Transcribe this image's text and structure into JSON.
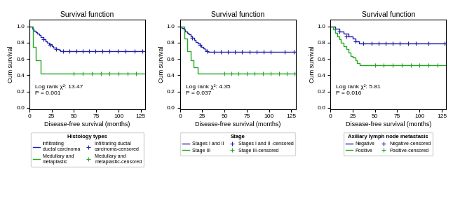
{
  "chart_data": [
    {
      "type": "step",
      "title": "Survival function",
      "x_label": "Disease-free survival (months)",
      "y_label": "Cum survival",
      "xlim": [
        0,
        130
      ],
      "ylim": [
        -0.02,
        1.08
      ],
      "xticks": [
        0,
        25,
        50,
        75,
        100,
        125
      ],
      "yticks": [
        {
          "value": 0.0,
          "label": "0.0"
        },
        {
          "value": 0.2,
          "label": "0.2"
        },
        {
          "value": 0.4,
          "label": "0.4"
        },
        {
          "value": 0.6,
          "label": "0.6"
        },
        {
          "value": 0.8,
          "label": "0.8"
        },
        {
          "value": 1.0,
          "label": "1.0"
        }
      ],
      "annotations": [
        "Log rank χ²: 13.47",
        "P = 0.001"
      ],
      "legend": "below",
      "legend_title": "Histology types",
      "series": [
        {
          "name": "Infiltrating\nductal carcinoma",
          "type": "step",
          "color": "#2222aa",
          "x": [
            0,
            3,
            5,
            7,
            9,
            11,
            13,
            16,
            18,
            20,
            22,
            25,
            27,
            30,
            33,
            35,
            38,
            40,
            42,
            45,
            48,
            50,
            130
          ],
          "values": [
            1.0,
            0.97,
            0.95,
            0.93,
            0.91,
            0.89,
            0.87,
            0.84,
            0.82,
            0.8,
            0.78,
            0.76,
            0.74,
            0.72,
            0.71,
            0.7,
            0.7,
            0.7,
            0.7,
            0.7,
            0.7,
            0.7,
            0.7
          ]
        },
        {
          "name": "Medullary and\nmetaplastic",
          "type": "step",
          "color": "#22aa22",
          "x": [
            0,
            4,
            7,
            10,
            13,
            16,
            20,
            22,
            50,
            130
          ],
          "values": [
            1.0,
            0.75,
            0.58,
            0.58,
            0.42,
            0.42,
            0.42,
            0.42,
            0.42,
            0.42
          ]
        },
        {
          "name": "Infiltrating ductal\ncarcinoma-censored",
          "type": "scatter",
          "marker": "plus",
          "color": "#2222aa",
          "x": [
            16,
            23,
            30,
            38,
            45,
            53,
            60,
            67,
            74,
            82,
            90,
            99,
            108,
            118,
            127
          ],
          "values": [
            0.84,
            0.77,
            0.72,
            0.7,
            0.7,
            0.7,
            0.7,
            0.7,
            0.7,
            0.7,
            0.7,
            0.7,
            0.7,
            0.7,
            0.7
          ]
        },
        {
          "name": "Medullary and\nmetaplastic-censored",
          "type": "scatter",
          "marker": "plus",
          "color": "#22aa22",
          "x": [
            50,
            60,
            70,
            80,
            90,
            100,
            110,
            120
          ],
          "values": [
            0.42,
            0.42,
            0.42,
            0.42,
            0.42,
            0.42,
            0.42,
            0.42
          ]
        }
      ]
    },
    {
      "type": "step",
      "title": "Survival function",
      "x_label": "Disease-free survival (months)",
      "y_label": "Cum survival",
      "xlim": [
        0,
        130
      ],
      "ylim": [
        -0.02,
        1.08
      ],
      "xticks": [
        0,
        25,
        50,
        75,
        100,
        125
      ],
      "yticks": [
        {
          "value": 0.0,
          "label": "0.0"
        },
        {
          "value": 0.2,
          "label": "0.2"
        },
        {
          "value": 0.4,
          "label": "0.4"
        },
        {
          "value": 0.6,
          "label": "0.6"
        },
        {
          "value": 0.8,
          "label": "0.8"
        },
        {
          "value": 1.0,
          "label": "1.0"
        }
      ],
      "annotations": [
        "Log rank χ²: 4.35",
        "P = 0.037"
      ],
      "legend": "below",
      "legend_title": "Stage",
      "series": [
        {
          "name": "Stages I and II",
          "type": "step",
          "color": "#2222aa",
          "x": [
            0,
            2,
            4,
            6,
            8,
            10,
            12,
            14,
            16,
            18,
            20,
            22,
            24,
            26,
            28,
            30,
            32,
            35,
            38,
            40,
            42,
            45,
            48,
            50,
            130
          ],
          "values": [
            1.0,
            0.98,
            0.96,
            0.94,
            0.92,
            0.9,
            0.88,
            0.86,
            0.83,
            0.81,
            0.79,
            0.77,
            0.75,
            0.73,
            0.71,
            0.7,
            0.69,
            0.69,
            0.69,
            0.69,
            0.69,
            0.69,
            0.69,
            0.69,
            0.69
          ]
        },
        {
          "name": "Stage III",
          "type": "step",
          "color": "#22aa22",
          "x": [
            0,
            5,
            8,
            12,
            15,
            20,
            30,
            50,
            130
          ],
          "values": [
            1.0,
            0.85,
            0.7,
            0.58,
            0.5,
            0.42,
            0.42,
            0.42,
            0.42
          ]
        },
        {
          "name": "Stages I and II -censored",
          "type": "scatter",
          "marker": "plus",
          "color": "#2222aa",
          "x": [
            14,
            22,
            30,
            38,
            46,
            54,
            62,
            70,
            78,
            86,
            94,
            102,
            118,
            128
          ],
          "values": [
            0.86,
            0.77,
            0.7,
            0.69,
            0.69,
            0.69,
            0.69,
            0.69,
            0.69,
            0.69,
            0.69,
            0.69,
            0.69,
            0.69
          ]
        },
        {
          "name": "Stage III-censored",
          "type": "scatter",
          "marker": "plus",
          "color": "#22aa22",
          "x": [
            50,
            58,
            66,
            75,
            84,
            93,
            102,
            111,
            120,
            129
          ],
          "values": [
            0.42,
            0.42,
            0.42,
            0.42,
            0.42,
            0.42,
            0.42,
            0.42,
            0.42,
            0.42
          ]
        }
      ]
    },
    {
      "type": "step",
      "title": "Survival function",
      "x_label": "Disease-free survival (months)",
      "y_label": "Cum survival",
      "xlim": [
        0,
        130
      ],
      "ylim": [
        -0.02,
        1.08
      ],
      "xticks": [
        0,
        25,
        50,
        75,
        100,
        125
      ],
      "yticks": [
        {
          "value": 0.0,
          "label": "0.0"
        },
        {
          "value": 0.2,
          "label": "0.2"
        },
        {
          "value": 0.4,
          "label": "0.4"
        },
        {
          "value": 0.6,
          "label": "0.6"
        },
        {
          "value": 0.8,
          "label": "0.8"
        },
        {
          "value": 1.0,
          "label": "1.0"
        }
      ],
      "annotations": [
        "Log rank χ²: 5.81",
        "P = 0.016"
      ],
      "legend": "below",
      "legend_title": "Axillary lymph node metastasis",
      "series": [
        {
          "name": "Negative",
          "type": "step",
          "color": "#2222aa",
          "x": [
            0,
            5,
            10,
            15,
            20,
            25,
            28,
            32,
            35,
            40,
            50,
            130
          ],
          "values": [
            1.0,
            0.97,
            0.94,
            0.91,
            0.88,
            0.85,
            0.82,
            0.79,
            0.79,
            0.79,
            0.79,
            0.79
          ]
        },
        {
          "name": "Positive",
          "type": "step",
          "color": "#22aa22",
          "x": [
            0,
            3,
            5,
            8,
            10,
            12,
            15,
            18,
            20,
            23,
            25,
            28,
            30,
            33,
            35,
            38,
            40,
            42,
            45,
            48,
            50,
            130
          ],
          "values": [
            1.0,
            0.96,
            0.92,
            0.88,
            0.84,
            0.8,
            0.76,
            0.72,
            0.68,
            0.64,
            0.62,
            0.58,
            0.55,
            0.52,
            0.52,
            0.52,
            0.52,
            0.52,
            0.52,
            0.52,
            0.52,
            0.52
          ]
        },
        {
          "name": "Negative-censored",
          "type": "scatter",
          "marker": "plus",
          "color": "#2222aa",
          "x": [
            10,
            18,
            28,
            37,
            46,
            54,
            62,
            70,
            78,
            87,
            96,
            110,
            128
          ],
          "values": [
            0.94,
            0.88,
            0.82,
            0.79,
            0.79,
            0.79,
            0.79,
            0.79,
            0.79,
            0.79,
            0.79,
            0.79,
            0.79
          ]
        },
        {
          "name": "Positive-censored",
          "type": "scatter",
          "marker": "plus",
          "color": "#22aa22",
          "x": [
            50,
            60,
            70,
            80,
            90,
            100,
            110,
            120
          ],
          "values": [
            0.52,
            0.52,
            0.52,
            0.52,
            0.52,
            0.52,
            0.52,
            0.52
          ]
        }
      ]
    }
  ]
}
